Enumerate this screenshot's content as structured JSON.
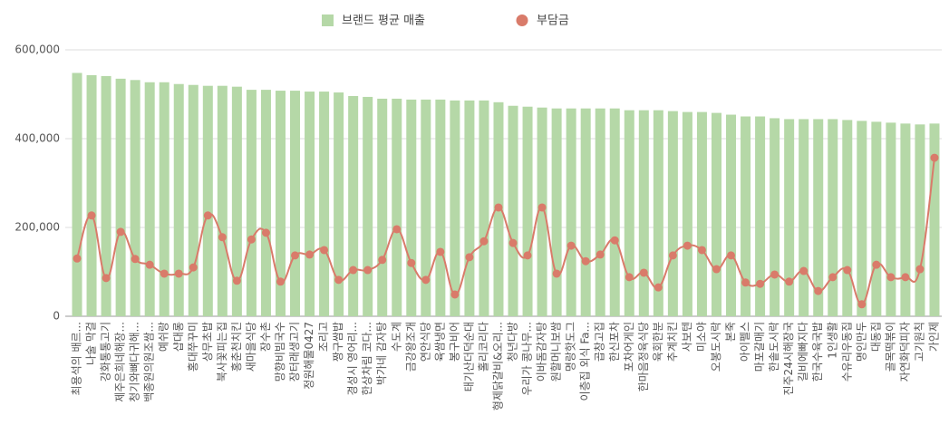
{
  "chart_data": {
    "type": "bar_line",
    "categories": [
      "최용석의 배르...",
      "나술 막걸",
      "강화통통고기",
      "제주은희네해장...",
      "청기와뼈다귀해...",
      "백종원의원조쌈...",
      "예쉬랑",
      "샵대롱",
      "홍대쭈꾸미",
      "상무초밥",
      "북사꽃피는집",
      "홍춘천치킨",
      "새마을식당",
      "장수촌",
      "망향비빔국수",
      "장터래생고기",
      "정원해물0427",
      "조리고",
      "짱구쌈밥",
      "경성시 영어리...",
      "한상차림 코다...",
      "박가네 감자탕",
      "수도계",
      "금강왕조개",
      "연안식당",
      "육쌈냉면",
      "봉구비어",
      "태기산더덕순대",
      "홀리코리다",
      "형제닭갈비&오리...",
      "청년다방",
      "우리가 콩나무...",
      "이바돔감자탕",
      "원할머니보쌈",
      "명랑핫도그",
      "이층집 외식 Fa...",
      "곱창고집",
      "한신포차",
      "포차어게인",
      "한마음정육식당",
      "육회한분",
      "추계치킨",
      "사보텐",
      "미소야",
      "오봉도시락",
      "본죽",
      "아이펠스",
      "마포갈매기",
      "한솥도시락",
      "진주24시해장국",
      "길비에빠지다",
      "한국수육국밥",
      "1인생활",
      "수유리우동집",
      "명인만두",
      "대동집",
      "골목떡볶이",
      "자연화덕피자",
      "고기원칙",
      "가인제"
    ],
    "series": [
      {
        "name": "브랜드 평균 매출",
        "type": "bar",
        "color": "#b5d8a7",
        "values": [
          548000,
          543000,
          541000,
          535000,
          532000,
          527000,
          527000,
          523000,
          521000,
          519000,
          519000,
          517000,
          510000,
          510000,
          508000,
          508000,
          506000,
          506000,
          504000,
          496000,
          494000,
          490000,
          490000,
          488000,
          488000,
          488000,
          486000,
          486000,
          486000,
          482000,
          474000,
          472000,
          470000,
          468000,
          468000,
          468000,
          468000,
          468000,
          464000,
          464000,
          464000,
          462000,
          460000,
          460000,
          458000,
          454000,
          450000,
          450000,
          446000,
          444000,
          444000,
          444000,
          444000,
          442000,
          440000,
          438000,
          436000,
          434000,
          432000,
          434000
        ]
      },
      {
        "name": "부담금",
        "type": "line",
        "color": "#d97b6a",
        "values": [
          130000,
          227000,
          86000,
          190000,
          129000,
          116000,
          96000,
          96000,
          110000,
          227000,
          178000,
          80000,
          173000,
          188000,
          78000,
          137000,
          139000,
          149000,
          82000,
          104000,
          104000,
          127000,
          196000,
          120000,
          82000,
          145000,
          49000,
          133000,
          169000,
          245000,
          165000,
          137000,
          245000,
          96000,
          159000,
          124000,
          139000,
          171000,
          88000,
          98000,
          65000,
          137000,
          159000,
          149000,
          106000,
          137000,
          76000,
          73000,
          94000,
          78000,
          102000,
          57000,
          88000,
          104000,
          27000,
          116000,
          88000,
          88000,
          106000,
          357000
        ]
      }
    ],
    "ylim": [
      0,
      600000
    ],
    "yticks": [
      0,
      {
        "value": 200000,
        "label": "200,000"
      },
      {
        "value": 400000,
        "label": "400,000"
      },
      {
        "value": 600000,
        "label": "600,000"
      }
    ],
    "grid": true
  }
}
